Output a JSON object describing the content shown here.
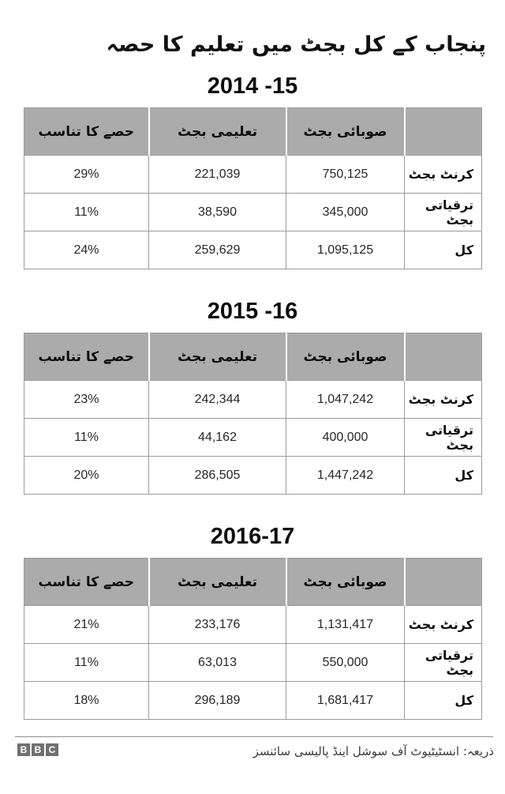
{
  "page_title": "پنجاب کے کل بجٹ میں تعلیم کا حصہ",
  "colors": {
    "header_bg": "#ababab",
    "table_border": "#9b9b9b",
    "logo_gray": "#707070",
    "title_text": "#111111",
    "source_text": "#3c3c3c"
  },
  "columns": {
    "share": "حصے کا تناسب",
    "education": "تعلیمی بجٹ",
    "provincial": "صوبائی بجٹ",
    "label": ""
  },
  "tables": [
    {
      "heading": "2014 -15",
      "rows": [
        {
          "label": "کرنٹ بجٹ",
          "share": "29%",
          "education": "221,039",
          "provincial": "750,125"
        },
        {
          "label": "ترقیاتی بجٹ",
          "share": "11%",
          "education": "38,590",
          "provincial": "345,000"
        },
        {
          "label": "کل",
          "share": "24%",
          "education": "259,629",
          "provincial": "1,095,125"
        }
      ]
    },
    {
      "heading": "2015 -16",
      "rows": [
        {
          "label": "کرنٹ بجٹ",
          "share": "23%",
          "education": "242,344",
          "provincial": "1,047,242"
        },
        {
          "label": "ترقیاتی بجٹ",
          "share": "11%",
          "education": "44,162",
          "provincial": "400,000"
        },
        {
          "label": "کل",
          "share": "20%",
          "education": "286,505",
          "provincial": "1,447,242"
        }
      ]
    },
    {
      "heading": "2016-17",
      "rows": [
        {
          "label": "کرنٹ بجٹ",
          "share": "21%",
          "education": "233,176",
          "provincial": "1,131,417"
        },
        {
          "label": "ترقیاتی بجٹ",
          "share": "11%",
          "education": "63,013",
          "provincial": "550,000"
        },
        {
          "label": "کل",
          "share": "18%",
          "education": "296,189",
          "provincial": "1,681,417"
        }
      ]
    }
  ],
  "footer": {
    "logo_letters": [
      "B",
      "B",
      "C"
    ],
    "source": "ذریعہ: انسٹیٹیوٹ آف سوشل اینڈ پالیسی سائنسز"
  },
  "chart_data": [
    {
      "type": "table",
      "title": "2014 -15",
      "columns": [
        "حصے کا تناسب",
        "تعلیمی بجٹ",
        "صوبائی بجٹ",
        ""
      ],
      "rows": [
        {
          "category": "کرنٹ بجٹ",
          "provincial_budget": 750125,
          "education_budget": 221039,
          "share_percent": 29
        },
        {
          "category": "ترقیاتی بجٹ",
          "provincial_budget": 345000,
          "education_budget": 38590,
          "share_percent": 11
        },
        {
          "category": "کل",
          "provincial_budget": 1095125,
          "education_budget": 259629,
          "share_percent": 24
        }
      ]
    },
    {
      "type": "table",
      "title": "2015 -16",
      "columns": [
        "حصے کا تناسب",
        "تعلیمی بجٹ",
        "صوبائی بجٹ",
        ""
      ],
      "rows": [
        {
          "category": "کرنٹ بجٹ",
          "provincial_budget": 1047242,
          "education_budget": 242344,
          "share_percent": 23
        },
        {
          "category": "ترقیاتی بجٹ",
          "provincial_budget": 400000,
          "education_budget": 44162,
          "share_percent": 11
        },
        {
          "category": "کل",
          "provincial_budget": 1447242,
          "education_budget": 286505,
          "share_percent": 20
        }
      ]
    },
    {
      "type": "table",
      "title": "2016-17",
      "columns": [
        "حصے کا تناسب",
        "تعلیمی بجٹ",
        "صوبائی بجٹ",
        ""
      ],
      "rows": [
        {
          "category": "کرنٹ بجٹ",
          "provincial_budget": 1131417,
          "education_budget": 233176,
          "share_percent": 21
        },
        {
          "category": "ترقیاتی بجٹ",
          "provincial_budget": 550000,
          "education_budget": 63013,
          "share_percent": 11
        },
        {
          "category": "کل",
          "provincial_budget": 1681417,
          "education_budget": 296189,
          "share_percent": 18
        }
      ]
    }
  ]
}
